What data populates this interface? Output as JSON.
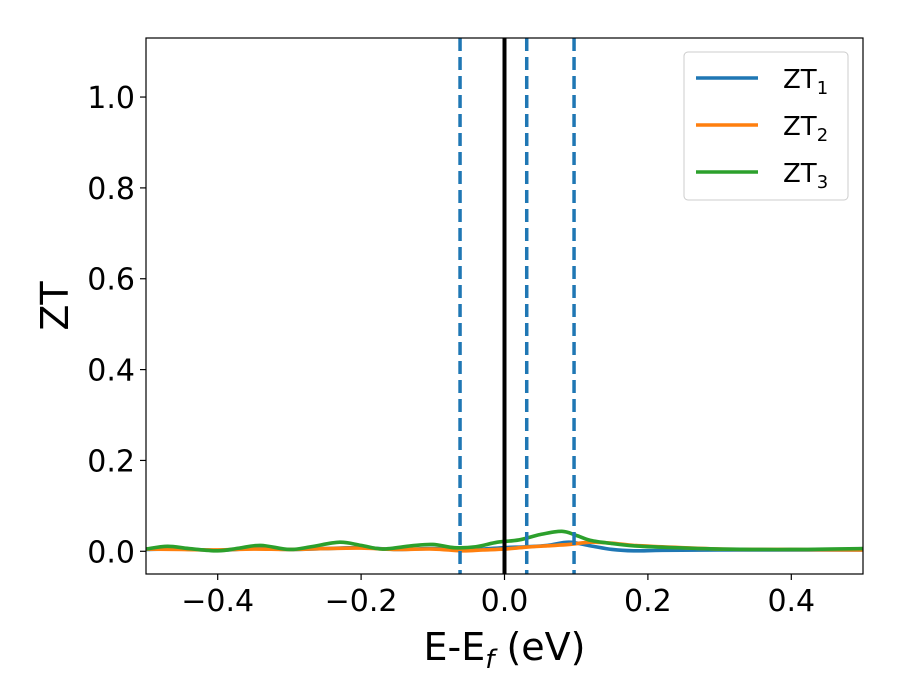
{
  "chart_data": {
    "type": "line",
    "title": "",
    "xlabel": {
      "main": "E-E",
      "sub": "f",
      "unit": " (eV)"
    },
    "ylabel": "ZT",
    "xlim": [
      -0.5,
      0.5
    ],
    "ylim": [
      -0.05,
      1.13
    ],
    "xticks": [
      -0.4,
      -0.2,
      0.0,
      0.2,
      0.4
    ],
    "xtick_labels": [
      "−0.4",
      "−0.2",
      "0.0",
      "0.2",
      "0.4"
    ],
    "yticks": [
      0.0,
      0.2,
      0.4,
      0.6,
      0.8,
      1.0
    ],
    "ytick_labels": [
      "0.0",
      "0.2",
      "0.4",
      "0.6",
      "0.8",
      "1.0"
    ],
    "grid": false,
    "legend_position": "top-right",
    "series": [
      {
        "name": "ZT",
        "name_sub": "1",
        "color": "#1f77b4",
        "x": [
          -0.5,
          -0.45,
          -0.4,
          -0.35,
          -0.3,
          -0.25,
          -0.2,
          -0.15,
          -0.1,
          -0.06,
          -0.03,
          0.0,
          0.03,
          0.06,
          0.09,
          0.12,
          0.15,
          0.18,
          0.22,
          0.3,
          0.4,
          0.5
        ],
        "y": [
          0.004,
          0.005,
          0.002,
          0.006,
          0.004,
          0.006,
          0.008,
          0.004,
          0.006,
          0.003,
          0.005,
          0.008,
          0.01,
          0.013,
          0.02,
          0.012,
          0.004,
          0.001,
          0.002,
          0.003,
          0.003,
          0.003
        ]
      },
      {
        "name": "ZT",
        "name_sub": "2",
        "color": "#ff7f0e",
        "x": [
          -0.5,
          -0.45,
          -0.4,
          -0.35,
          -0.3,
          -0.25,
          -0.2,
          -0.15,
          -0.1,
          -0.06,
          -0.03,
          0.0,
          0.03,
          0.06,
          0.09,
          0.12,
          0.15,
          0.18,
          0.22,
          0.3,
          0.4,
          0.5
        ],
        "y": [
          0.005,
          0.004,
          0.003,
          0.005,
          0.004,
          0.006,
          0.007,
          0.004,
          0.005,
          0.001,
          0.003,
          0.005,
          0.009,
          0.012,
          0.015,
          0.02,
          0.018,
          0.013,
          0.01,
          0.005,
          0.004,
          0.003
        ]
      },
      {
        "name": "ZT",
        "name_sub": "3",
        "color": "#2ca02c",
        "x": [
          -0.5,
          -0.47,
          -0.44,
          -0.4,
          -0.37,
          -0.34,
          -0.3,
          -0.27,
          -0.23,
          -0.2,
          -0.17,
          -0.13,
          -0.1,
          -0.07,
          -0.04,
          -0.01,
          0.02,
          0.05,
          0.08,
          0.1,
          0.12,
          0.15,
          0.18,
          0.22,
          0.3,
          0.4,
          0.5
        ],
        "y": [
          0.005,
          0.011,
          0.006,
          0.001,
          0.007,
          0.013,
          0.004,
          0.01,
          0.02,
          0.013,
          0.005,
          0.012,
          0.015,
          0.008,
          0.01,
          0.02,
          0.025,
          0.037,
          0.044,
          0.035,
          0.024,
          0.017,
          0.012,
          0.009,
          0.005,
          0.004,
          0.006
        ]
      }
    ],
    "vertical_lines": [
      {
        "x": -0.062,
        "style": "dashed",
        "color": "#1f77b4"
      },
      {
        "x": 0.0,
        "style": "solid",
        "color": "#000000"
      },
      {
        "x": 0.031,
        "style": "dashed",
        "color": "#1f77b4"
      },
      {
        "x": 0.097,
        "style": "dashed",
        "color": "#1f77b4"
      }
    ]
  }
}
